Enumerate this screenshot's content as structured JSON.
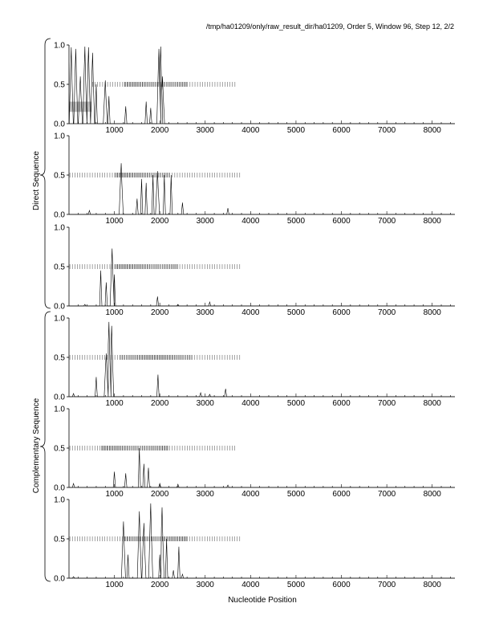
{
  "header": "/tmp/ha01209/only/raw_result_dir/ha01209, Order 5, Window 96, Step 12, 2/2",
  "xlabel": "Nucleotide Position",
  "group_labels": [
    "Direct Sequence",
    "Complementary Sequence"
  ],
  "colors": {
    "line": "#000000",
    "highlight": "#bbbbbb",
    "tickmark": "#666666"
  },
  "chart_data": {
    "type": "line",
    "xlim": [
      0,
      8500
    ],
    "ylim": [
      0,
      1
    ],
    "xticks": [
      1000,
      2000,
      3000,
      4000,
      5000,
      6000,
      7000,
      8000
    ],
    "yticks": [
      0.0,
      0.5,
      1.0
    ],
    "ytick_labels": [
      "0.0",
      "0.5",
      "1.0"
    ],
    "panels": [
      {
        "group": "Direct Sequence",
        "highlight": {
          "x": [
            0,
            500
          ],
          "y": [
            0.15,
            0.28
          ]
        },
        "peaks": [
          [
            50,
            0.97
          ],
          [
            150,
            0.95
          ],
          [
            250,
            0.6
          ],
          [
            350,
            0.98
          ],
          [
            430,
            0.97
          ],
          [
            520,
            0.9
          ],
          [
            600,
            0.5
          ],
          [
            800,
            0.55
          ],
          [
            880,
            0.35
          ],
          [
            1250,
            0.22
          ],
          [
            1700,
            0.28
          ],
          [
            1800,
            0.2
          ],
          [
            1980,
            0.95
          ],
          [
            2020,
            0.98
          ],
          [
            2060,
            0.6
          ]
        ],
        "ticks": [
          [
            500,
            3700
          ],
          [
            1200,
            2600
          ]
        ]
      },
      {
        "group": "Direct Sequence",
        "highlight": null,
        "peaks": [
          [
            450,
            0.05
          ],
          [
            1150,
            0.65
          ],
          [
            1500,
            0.2
          ],
          [
            1600,
            0.45
          ],
          [
            1700,
            0.4
          ],
          [
            1850,
            0.5
          ],
          [
            1950,
            0.55
          ],
          [
            2100,
            0.5
          ],
          [
            2250,
            0.5
          ],
          [
            2500,
            0.15
          ],
          [
            3500,
            0.08
          ]
        ],
        "ticks": [
          [
            0,
            3800
          ],
          [
            1000,
            2200
          ]
        ]
      },
      {
        "group": "Direct Sequence",
        "highlight": null,
        "peaks": [
          [
            350,
            0.02
          ],
          [
            700,
            0.45
          ],
          [
            820,
            0.3
          ],
          [
            950,
            0.73
          ],
          [
            1000,
            0.4
          ],
          [
            1950,
            0.12
          ],
          [
            2400,
            0.02
          ],
          [
            3100,
            0.05
          ]
        ],
        "ticks": [
          [
            0,
            3800
          ],
          [
            1000,
            2400
          ]
        ]
      },
      {
        "group": "Complementary Sequence",
        "highlight": null,
        "peaks": [
          [
            100,
            0.04
          ],
          [
            600,
            0.25
          ],
          [
            820,
            0.55
          ],
          [
            880,
            0.95
          ],
          [
            940,
            0.9
          ],
          [
            1960,
            0.28
          ],
          [
            2900,
            0.05
          ],
          [
            3100,
            0.03
          ],
          [
            3450,
            0.1
          ]
        ],
        "ticks": [
          [
            0,
            3800
          ],
          [
            1100,
            2700
          ]
        ]
      },
      {
        "group": "Complementary Sequence",
        "highlight": null,
        "peaks": [
          [
            100,
            0.05
          ],
          [
            1000,
            0.2
          ],
          [
            1250,
            0.18
          ],
          [
            1550,
            0.5
          ],
          [
            1650,
            0.3
          ],
          [
            1750,
            0.25
          ],
          [
            2000,
            0.05
          ],
          [
            2400,
            0.04
          ],
          [
            3500,
            0.03
          ]
        ],
        "ticks": [
          [
            0,
            3700
          ],
          [
            700,
            2200
          ]
        ]
      },
      {
        "group": "Complementary Sequence",
        "highlight": null,
        "peaks": [
          [
            100,
            0.02
          ],
          [
            1200,
            0.72
          ],
          [
            1300,
            0.3
          ],
          [
            1550,
            0.85
          ],
          [
            1650,
            0.7
          ],
          [
            1800,
            0.95
          ],
          [
            2000,
            0.3
          ],
          [
            2050,
            0.9
          ],
          [
            2150,
            0.5
          ],
          [
            2300,
            0.1
          ],
          [
            2420,
            0.4
          ],
          [
            2500,
            0.05
          ]
        ],
        "ticks": [
          [
            0,
            3800
          ],
          [
            1200,
            2600
          ]
        ]
      }
    ]
  }
}
